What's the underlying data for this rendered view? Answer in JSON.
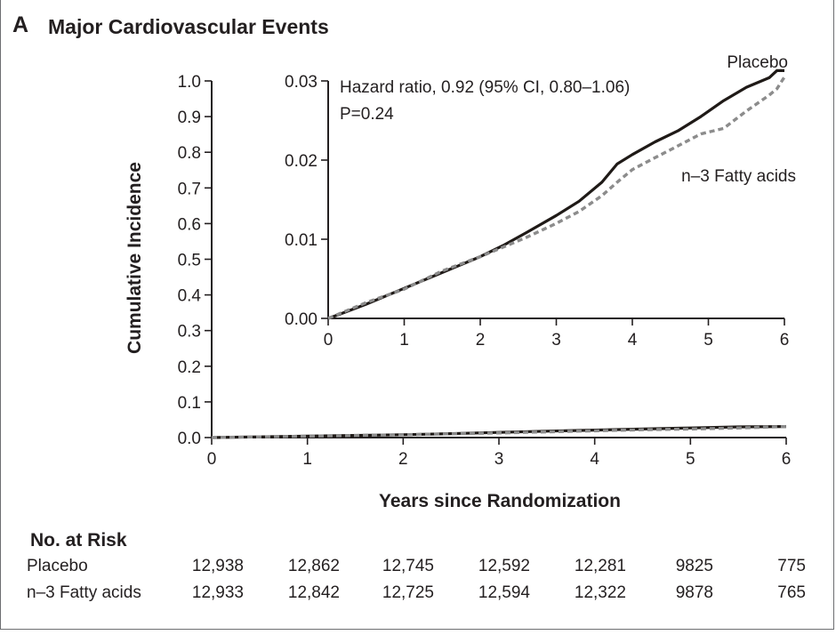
{
  "panel": {
    "letter": "A",
    "title": "Major Cardiovascular Events"
  },
  "chart_data": [
    {
      "type": "line",
      "role": "main",
      "xlabel": "Years since Randomization",
      "ylabel": "Cumulative Incidence",
      "xlim": [
        0,
        6
      ],
      "ylim": [
        0,
        1.0
      ],
      "x_ticks": [
        "0",
        "1",
        "2",
        "3",
        "4",
        "5",
        "6"
      ],
      "y_ticks": [
        "0.0",
        "0.1",
        "0.2",
        "0.3",
        "0.4",
        "0.5",
        "0.6",
        "0.7",
        "0.8",
        "0.9",
        "1.0"
      ],
      "series": [
        {
          "name": "Placebo",
          "style": "solid",
          "color": "#1f1a17",
          "x": [
            0,
            0.5,
            1,
            1.5,
            2,
            2.5,
            3,
            3.5,
            4,
            4.5,
            5,
            5.5,
            6
          ],
          "y": [
            0,
            0.002,
            0.004,
            0.006,
            0.008,
            0.011,
            0.0145,
            0.018,
            0.021,
            0.024,
            0.027,
            0.03,
            0.031
          ]
        },
        {
          "name": "n–3 Fatty acids",
          "style": "dashed",
          "color": "#8c8c8c",
          "x": [
            0,
            0.5,
            1,
            1.5,
            2,
            2.5,
            3,
            3.5,
            4,
            4.5,
            5,
            5.5,
            6
          ],
          "y": [
            0,
            0.002,
            0.004,
            0.006,
            0.008,
            0.0105,
            0.013,
            0.016,
            0.019,
            0.022,
            0.024,
            0.027,
            0.031
          ]
        }
      ]
    },
    {
      "type": "line",
      "role": "inset",
      "xlim": [
        0,
        6
      ],
      "ylim": [
        0,
        0.03
      ],
      "x_ticks": [
        "0",
        "1",
        "2",
        "3",
        "4",
        "5",
        "6"
      ],
      "y_ticks": [
        "0.00",
        "0.01",
        "0.02",
        "0.03"
      ],
      "annotations": [
        "Hazard ratio, 0.92 (95% CI, 0.80–1.06)",
        "P=0.24"
      ],
      "series_labels": [
        "Placebo",
        "n–3 Fatty acids"
      ],
      "series": [
        {
          "name": "Placebo",
          "style": "solid",
          "color": "#1f1a17",
          "x": [
            0,
            0.2,
            0.5,
            1,
            1.5,
            2,
            2.3,
            2.6,
            3,
            3.3,
            3.6,
            3.8,
            4,
            4.3,
            4.6,
            4.9,
            5.2,
            5.5,
            5.8,
            5.9,
            6
          ],
          "y": [
            0,
            0.0007,
            0.0018,
            0.0038,
            0.0058,
            0.0078,
            0.0092,
            0.0108,
            0.013,
            0.0148,
            0.0172,
            0.0195,
            0.0207,
            0.0223,
            0.0237,
            0.0255,
            0.0275,
            0.0292,
            0.0304,
            0.0313,
            0.0313
          ]
        },
        {
          "name": "n–3 Fatty acids",
          "style": "dashed",
          "color": "#8c8c8c",
          "x": [
            0,
            0.2,
            0.5,
            1,
            1.5,
            2,
            2.3,
            2.6,
            3,
            3.3,
            3.6,
            3.8,
            4,
            4.3,
            4.6,
            4.9,
            5.2,
            5.5,
            5.8,
            5.9,
            6
          ],
          "y": [
            0,
            0.0008,
            0.002,
            0.0037,
            0.006,
            0.0078,
            0.009,
            0.0102,
            0.012,
            0.0135,
            0.0155,
            0.0172,
            0.0188,
            0.0203,
            0.0218,
            0.0233,
            0.024,
            0.0262,
            0.0282,
            0.029,
            0.0305
          ]
        }
      ]
    }
  ],
  "risk_table": {
    "title": "No. at Risk",
    "rows": [
      {
        "label": "Placebo",
        "values": [
          "12,938",
          "12,862",
          "12,745",
          "12,592",
          "12,281",
          "9825",
          "775"
        ]
      },
      {
        "label": "n–3 Fatty acids",
        "values": [
          "12,933",
          "12,842",
          "12,725",
          "12,594",
          "12,322",
          "9878",
          "765"
        ]
      }
    ]
  }
}
